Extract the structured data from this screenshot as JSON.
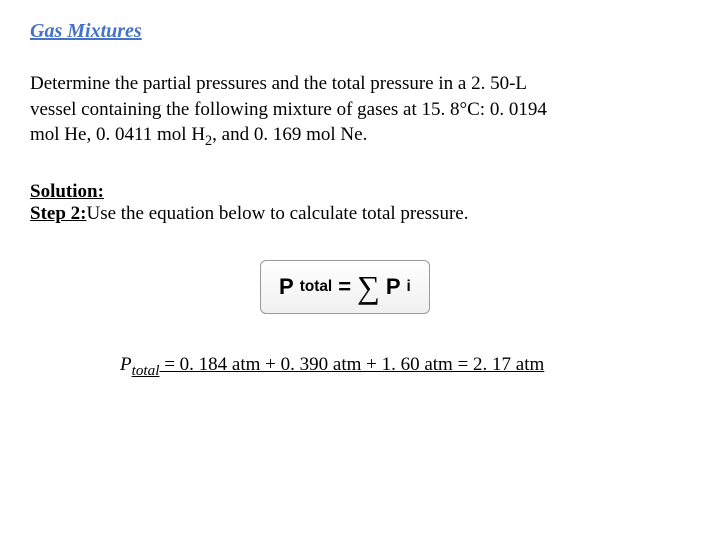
{
  "title": "Gas Mixtures",
  "problem": {
    "line1": "Determine the partial pressures and the total pressure in a 2. 50-L",
    "line2_a": "vessel containing the following mixture of gases at 15. 8°C:  0. 0194",
    "line2_b": "mol He, 0. 0411 mol H",
    "line2_c": ", and 0. 169 mol Ne."
  },
  "solution_label": "Solution:",
  "step_label": "Step 2:",
  "step_text": "Use the equation below to calculate total pressure.",
  "equation": {
    "lhs_P": "P",
    "lhs_sub": "total",
    "equals": " = ",
    "rhs_P": "P",
    "rhs_sub": "i"
  },
  "result": {
    "P": "P",
    "sub": "total",
    "rest": " = 0. 184 atm + 0. 390 atm + 1. 60 atm = 2. 17 atm"
  },
  "colors": {
    "title_color": "#4472c4",
    "text_color": "#000000",
    "bg": "#ffffff"
  }
}
